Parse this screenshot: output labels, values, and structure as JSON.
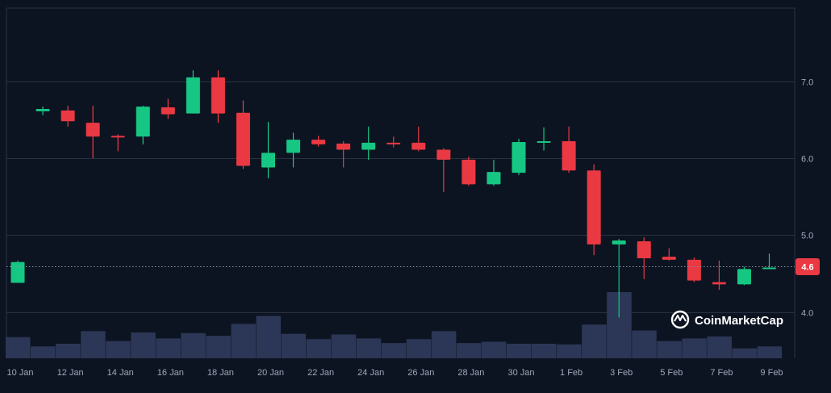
{
  "chart_data": {
    "type": "candlestick",
    "colors": {
      "up": "#16c784",
      "down": "#ea3943",
      "volume": "#2c3757",
      "grid": "#2a3142",
      "background": "#0d1421",
      "tick_text": "#a1a7bb",
      "price_tag": "#ea3943"
    },
    "y_ticks": [
      "7.0",
      "6.0",
      "5.0",
      "4.0"
    ],
    "y_tick_values": [
      7.0,
      6.0,
      5.0,
      4.0
    ],
    "ylim": [
      3.4,
      7.95
    ],
    "x_tick_labels": [
      "10 Jan",
      "12 Jan",
      "14 Jan",
      "16 Jan",
      "18 Jan",
      "20 Jan",
      "22 Jan",
      "24 Jan",
      "26 Jan",
      "28 Jan",
      "30 Jan",
      "1 Feb",
      "3 Feb",
      "5 Feb",
      "7 Feb",
      "9 Feb"
    ],
    "current_price": "4.6",
    "current_price_value": 4.6,
    "candles": [
      {
        "date": "10 Jan",
        "open": 4.38,
        "high": 4.67,
        "low": 4.38,
        "close": 4.65
      },
      {
        "date": "11 Jan",
        "open": 6.61,
        "high": 6.67,
        "low": 6.56,
        "close": 6.64
      },
      {
        "date": "12 Jan",
        "open": 6.62,
        "high": 6.68,
        "low": 6.41,
        "close": 6.48
      },
      {
        "date": "13 Jan",
        "open": 6.46,
        "high": 6.68,
        "low": 6.0,
        "close": 6.28
      },
      {
        "date": "14 Jan",
        "open": 6.29,
        "high": 6.31,
        "low": 6.09,
        "close": 6.27
      },
      {
        "date": "15 Jan",
        "open": 6.28,
        "high": 6.68,
        "low": 6.18,
        "close": 6.67
      },
      {
        "date": "16 Jan",
        "open": 6.66,
        "high": 6.77,
        "low": 6.51,
        "close": 6.57
      },
      {
        "date": "17 Jan",
        "open": 6.58,
        "high": 7.14,
        "low": 6.58,
        "close": 7.05
      },
      {
        "date": "18 Jan",
        "open": 7.05,
        "high": 7.14,
        "low": 6.46,
        "close": 6.58
      },
      {
        "date": "19 Jan",
        "open": 6.59,
        "high": 6.75,
        "low": 5.86,
        "close": 5.9
      },
      {
        "date": "20 Jan",
        "open": 5.88,
        "high": 6.47,
        "low": 5.74,
        "close": 6.07
      },
      {
        "date": "21 Jan",
        "open": 6.07,
        "high": 6.33,
        "low": 5.88,
        "close": 6.24
      },
      {
        "date": "22 Jan",
        "open": 6.24,
        "high": 6.29,
        "low": 6.15,
        "close": 6.18
      },
      {
        "date": "23 Jan",
        "open": 6.19,
        "high": 6.22,
        "low": 5.88,
        "close": 6.11
      },
      {
        "date": "24 Jan",
        "open": 6.11,
        "high": 6.41,
        "low": 5.98,
        "close": 6.2
      },
      {
        "date": "25 Jan",
        "open": 6.2,
        "high": 6.28,
        "low": 6.14,
        "close": 6.18
      },
      {
        "date": "26 Jan",
        "open": 6.2,
        "high": 6.41,
        "low": 6.09,
        "close": 6.11
      },
      {
        "date": "27 Jan",
        "open": 6.11,
        "high": 6.13,
        "low": 5.56,
        "close": 5.98
      },
      {
        "date": "28 Jan",
        "open": 5.98,
        "high": 6.02,
        "low": 5.64,
        "close": 5.66
      },
      {
        "date": "29 Jan",
        "open": 5.66,
        "high": 5.98,
        "low": 5.64,
        "close": 5.82
      },
      {
        "date": "30 Jan",
        "open": 5.81,
        "high": 6.25,
        "low": 5.78,
        "close": 6.21
      },
      {
        "date": "31 Jan",
        "open": 6.21,
        "high": 6.4,
        "low": 6.1,
        "close": 6.22
      },
      {
        "date": "1 Feb",
        "open": 6.22,
        "high": 6.41,
        "low": 5.81,
        "close": 5.84
      },
      {
        "date": "2 Feb",
        "open": 5.84,
        "high": 5.92,
        "low": 4.74,
        "close": 4.88
      },
      {
        "date": "3 Feb",
        "open": 4.88,
        "high": 4.95,
        "low": 3.93,
        "close": 4.93
      },
      {
        "date": "4 Feb",
        "open": 4.92,
        "high": 4.97,
        "low": 4.43,
        "close": 4.7
      },
      {
        "date": "5 Feb",
        "open": 4.72,
        "high": 4.83,
        "low": 4.67,
        "close": 4.68
      },
      {
        "date": "6 Feb",
        "open": 4.68,
        "high": 4.71,
        "low": 4.39,
        "close": 4.41
      },
      {
        "date": "7 Feb",
        "open": 4.39,
        "high": 4.67,
        "low": 4.29,
        "close": 4.36
      },
      {
        "date": "8 Feb",
        "open": 4.36,
        "high": 4.59,
        "low": 4.35,
        "close": 4.56
      },
      {
        "date": "9 Feb",
        "open": 4.57,
        "high": 4.76,
        "low": 4.57,
        "close": 4.58
      }
    ],
    "volume": [
      0.32,
      0.18,
      0.22,
      0.41,
      0.26,
      0.39,
      0.3,
      0.38,
      0.34,
      0.52,
      0.64,
      0.37,
      0.29,
      0.36,
      0.3,
      0.23,
      0.29,
      0.41,
      0.23,
      0.25,
      0.22,
      0.22,
      0.21,
      0.51,
      1.0,
      0.42,
      0.26,
      0.3,
      0.33,
      0.15,
      0.18
    ]
  },
  "watermark": {
    "brand": "CoinMarketCap",
    "icon": "coinmarketcap-logo-icon"
  }
}
